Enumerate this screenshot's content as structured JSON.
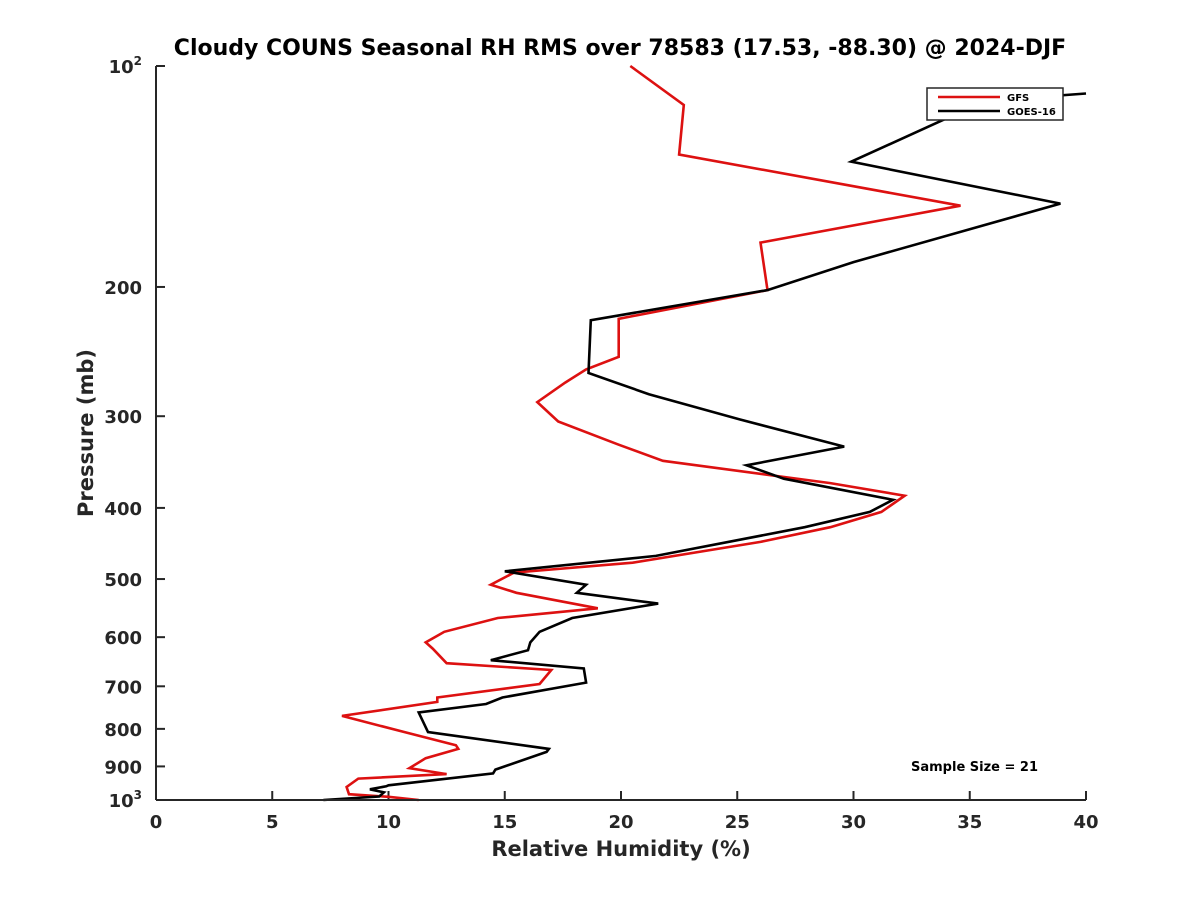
{
  "chart_data": {
    "type": "line",
    "title": "Cloudy COUNS Seasonal RH RMS over 78583 (17.53, -88.30) @ 2024-DJF",
    "xlabel": "Relative Humidity (%)",
    "ylabel": "Pressure (mb)",
    "xlim": [
      0,
      40
    ],
    "ylim": [
      1000,
      100
    ],
    "yscale": "log",
    "xticks": [
      "0",
      "5",
      "10",
      "15",
      "20",
      "25",
      "30",
      "35",
      "40"
    ],
    "yticks": [
      {
        "value": 100,
        "base": "10",
        "exp": "2"
      },
      {
        "value": 200,
        "base": "200",
        "exp": ""
      },
      {
        "value": 300,
        "base": "300",
        "exp": ""
      },
      {
        "value": 400,
        "base": "400",
        "exp": ""
      },
      {
        "value": 500,
        "base": "500",
        "exp": ""
      },
      {
        "value": 600,
        "base": "600",
        "exp": ""
      },
      {
        "value": 700,
        "base": "700",
        "exp": ""
      },
      {
        "value": 800,
        "base": "800",
        "exp": ""
      },
      {
        "value": 900,
        "base": "900",
        "exp": ""
      },
      {
        "value": 1000,
        "base": "10",
        "exp": "3"
      }
    ],
    "legend_position": "top-right",
    "annotation": "Sample Size = 21",
    "series": [
      {
        "name": "GFS",
        "color": "#dd1111",
        "points": [
          [
            11.3,
            1000
          ],
          [
            10.0,
            990
          ],
          [
            8.3,
            982
          ],
          [
            8.2,
            960
          ],
          [
            8.7,
            935
          ],
          [
            12.5,
            922
          ],
          [
            10.9,
            905
          ],
          [
            11.6,
            877
          ],
          [
            13.0,
            852
          ],
          [
            12.9,
            842
          ],
          [
            10.8,
            810
          ],
          [
            8.0,
            768
          ],
          [
            12.1,
            735
          ],
          [
            12.1,
            725
          ],
          [
            16.5,
            695
          ],
          [
            17.0,
            665
          ],
          [
            12.5,
            651
          ],
          [
            11.9,
            622
          ],
          [
            11.6,
            610
          ],
          [
            12.4,
            590
          ],
          [
            14.7,
            565
          ],
          [
            19.0,
            548
          ],
          [
            15.5,
            522
          ],
          [
            14.4,
            509
          ],
          [
            15.4,
            490
          ],
          [
            20.5,
            475
          ],
          [
            26.0,
            445
          ],
          [
            29.0,
            425
          ],
          [
            31.2,
            405
          ],
          [
            32.2,
            385
          ],
          [
            29.0,
            370
          ],
          [
            21.8,
            345
          ],
          [
            19.9,
            328
          ],
          [
            17.3,
            305
          ],
          [
            16.4,
            287
          ],
          [
            17.6,
            270
          ],
          [
            18.5,
            259
          ],
          [
            19.9,
            249
          ],
          [
            19.9,
            221
          ],
          [
            26.3,
            202
          ],
          [
            26.0,
            174
          ],
          [
            34.6,
            155
          ],
          [
            22.5,
            132
          ],
          [
            22.7,
            113
          ],
          [
            20.4,
            100
          ]
        ]
      },
      {
        "name": "GOES-16",
        "color": "#000000",
        "points": [
          [
            7.2,
            1000
          ],
          [
            9.6,
            989
          ],
          [
            9.8,
            976
          ],
          [
            9.2,
            967
          ],
          [
            9.9,
            958
          ],
          [
            10.0,
            955
          ],
          [
            14.5,
            920
          ],
          [
            14.6,
            909
          ],
          [
            16.8,
            860
          ],
          [
            16.9,
            852
          ],
          [
            11.7,
            808
          ],
          [
            11.3,
            760
          ],
          [
            14.2,
            740
          ],
          [
            14.9,
            725
          ],
          [
            18.5,
            692
          ],
          [
            18.4,
            662
          ],
          [
            14.4,
            645
          ],
          [
            16.0,
            625
          ],
          [
            16.1,
            610
          ],
          [
            16.5,
            590
          ],
          [
            17.9,
            565
          ],
          [
            21.6,
            540
          ],
          [
            18.1,
            522
          ],
          [
            18.5,
            509
          ],
          [
            15.0,
            488
          ],
          [
            21.5,
            465
          ],
          [
            27.9,
            425
          ],
          [
            30.7,
            405
          ],
          [
            31.7,
            390
          ],
          [
            27.0,
            365
          ],
          [
            25.4,
            350
          ],
          [
            29.6,
            330
          ],
          [
            25.1,
            303
          ],
          [
            21.2,
            280
          ],
          [
            18.6,
            262
          ],
          [
            18.7,
            222
          ],
          [
            26.3,
            202
          ],
          [
            30.0,
            185
          ],
          [
            38.9,
            154
          ],
          [
            29.9,
            135
          ],
          [
            35.0,
            114
          ],
          [
            36.6,
            111
          ],
          [
            40.0,
            109
          ]
        ]
      }
    ]
  }
}
